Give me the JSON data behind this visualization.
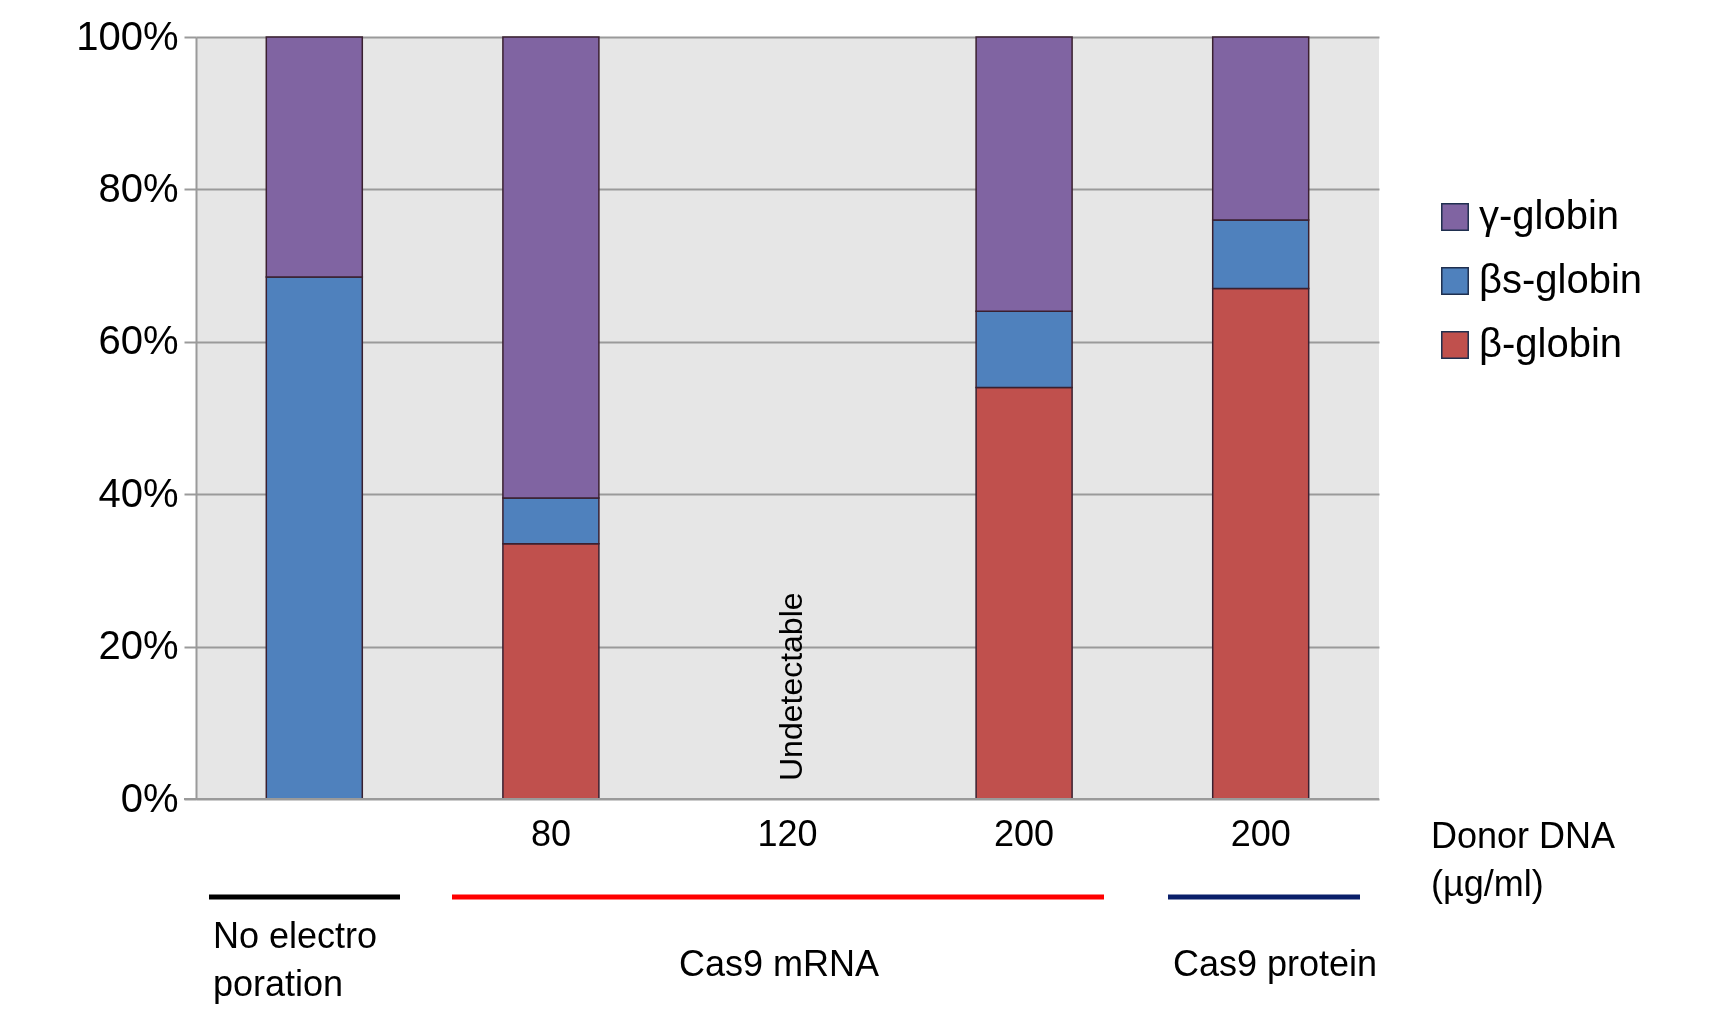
{
  "chart_data": {
    "type": "bar",
    "stacked": true,
    "categories": [
      null,
      "80",
      "120",
      "200",
      "200"
    ],
    "xlabel": "Donor DNA (µg/ml)",
    "series": [
      {
        "name": "β-globin",
        "color": "#c0504d",
        "values": [
          null,
          33.5,
          null,
          54,
          67
        ]
      },
      {
        "name": "βs-globin",
        "color": "#4f81bd",
        "values": [
          68.5,
          6,
          null,
          10,
          9
        ]
      },
      {
        "name": "γ-globin",
        "color": "#8064a2",
        "values": [
          31.5,
          60.5,
          null,
          36,
          24
        ]
      }
    ],
    "ylim": [
      0,
      100
    ],
    "yticks": [
      {
        "value": 0,
        "label": "0%"
      },
      {
        "value": 20,
        "label": "20%"
      },
      {
        "value": 40,
        "label": "40%"
      },
      {
        "value": 60,
        "label": "60%"
      },
      {
        "value": 80,
        "label": "80%"
      },
      {
        "value": 100,
        "label": "100%"
      }
    ],
    "grid": "y",
    "legend": "right",
    "annotations": [
      "Undetectable",
      "No electro poration",
      "Cas9 mRNA",
      "Cas9 protein"
    ]
  }
}
